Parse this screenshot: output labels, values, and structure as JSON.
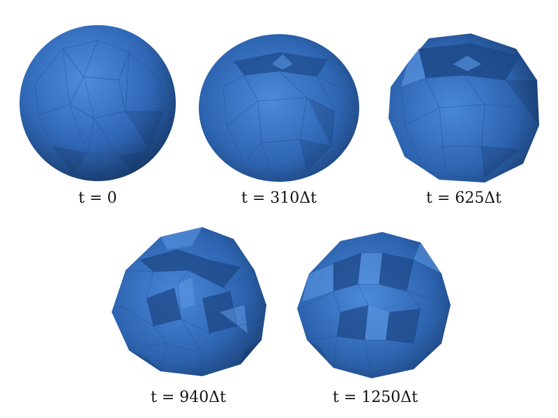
{
  "colors": {
    "sphere_light": "#4a86d6",
    "sphere_mid": "#2f67b5",
    "sphere_dark": "#173a6e",
    "facet_line": "#1e4e93",
    "caption": "#111111"
  },
  "panels": [
    {
      "id": "p0",
      "caption": "t = 0"
    },
    {
      "id": "p1",
      "caption": "t = 310Δt"
    },
    {
      "id": "p2",
      "caption": "t = 625Δt"
    },
    {
      "id": "p3",
      "caption": "t = 940Δt"
    },
    {
      "id": "p4",
      "caption": "t = 1250Δt"
    }
  ]
}
